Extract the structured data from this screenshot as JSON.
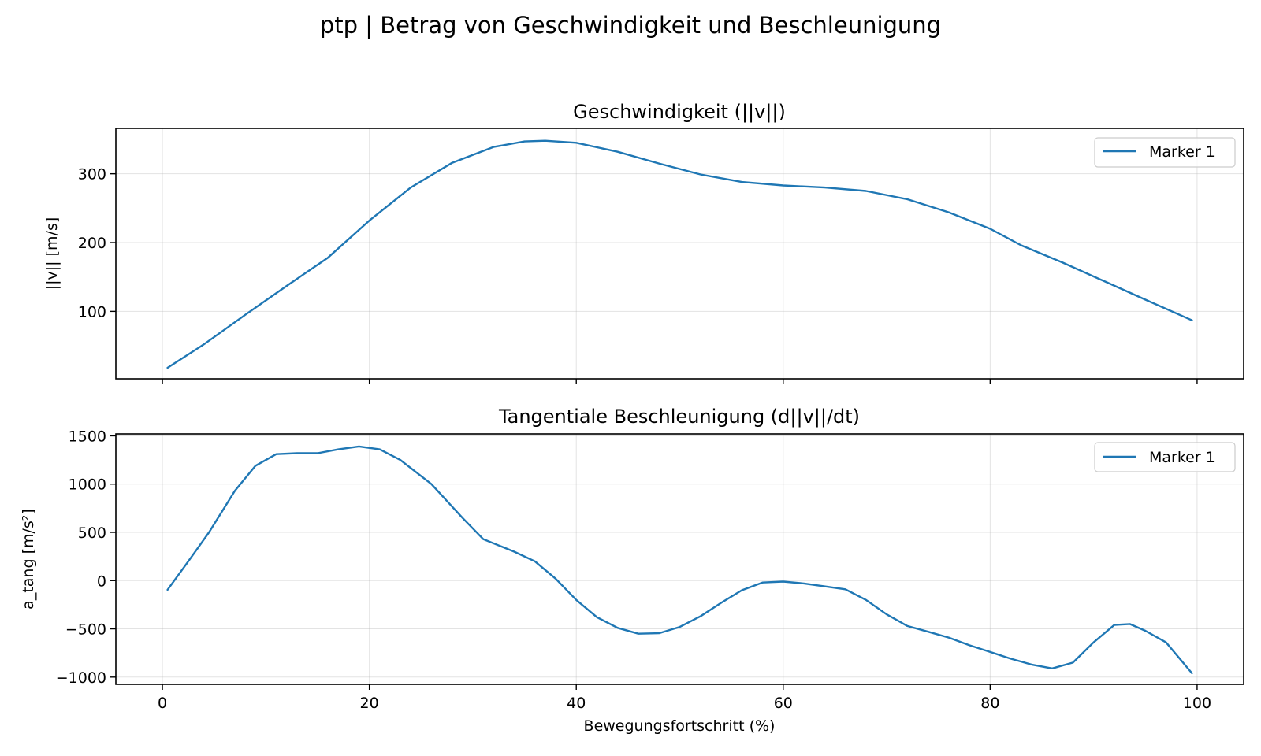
{
  "figure": {
    "suptitle": "ptp | Betrag von Geschwindigkeit und Beschleunigung",
    "xlabel": "Bewegungsfortschritt (%)",
    "line_color": "#1f77b4"
  },
  "chart_data": [
    {
      "type": "line",
      "title": "Geschwindigkeit (||v||)",
      "xlabel": "",
      "ylabel": "||v|| [m/s]",
      "xlim": [
        -4.5,
        104.5
      ],
      "ylim": [
        2,
        366
      ],
      "xticks": [
        0,
        20,
        40,
        60,
        80,
        100
      ],
      "yticks": [
        100,
        200,
        300
      ],
      "xtick_labels_visible": false,
      "grid": true,
      "legend": {
        "location": "top-right",
        "entries": [
          "Marker 1"
        ]
      },
      "series": [
        {
          "name": "Marker 1",
          "color": "#1f77b4",
          "x": [
            0.5,
            4,
            8,
            12,
            16,
            20,
            24,
            28,
            32,
            35,
            37,
            40,
            44,
            48,
            52,
            56,
            60,
            64,
            68,
            72,
            76,
            80,
            83,
            87,
            91,
            95,
            99.5
          ],
          "y": [
            18,
            52,
            95,
            137,
            178,
            232,
            280,
            316,
            339,
            347,
            348,
            345,
            332,
            315,
            299,
            288,
            283,
            280,
            275,
            263,
            244,
            220,
            196,
            171,
            144,
            117,
            87
          ]
        }
      ]
    },
    {
      "type": "line",
      "title": "Tangentiale Beschleunigung (d||v||/dt)",
      "xlabel": "Bewegungsfortschritt (%)",
      "ylabel": "a_tang [m/s²]",
      "xlim": [
        -4.5,
        104.5
      ],
      "ylim": [
        -1075,
        1520
      ],
      "xticks": [
        0,
        20,
        40,
        60,
        80,
        100
      ],
      "xtick_labels": [
        "0",
        "20",
        "40",
        "60",
        "80",
        "100"
      ],
      "yticks": [
        -1000,
        -500,
        0,
        500,
        1000,
        1500
      ],
      "ytick_labels": [
        "−1000",
        "−500",
        "0",
        "500",
        "1000",
        "1500"
      ],
      "grid": true,
      "legend": {
        "location": "top-right",
        "entries": [
          "Marker 1"
        ]
      },
      "series": [
        {
          "name": "Marker 1",
          "color": "#1f77b4",
          "x": [
            0.5,
            2.5,
            4.5,
            7,
            9,
            11,
            13,
            15,
            17,
            19,
            21,
            23,
            26,
            29,
            31,
            34,
            36,
            38,
            40,
            42,
            44,
            46,
            48,
            50,
            52,
            54,
            56,
            58,
            60,
            62,
            64,
            66,
            68,
            70,
            72,
            74,
            76,
            78,
            80,
            82,
            84,
            86,
            88,
            90,
            92,
            93.5,
            95,
            97,
            99.5
          ],
          "y": [
            -95,
            200,
            500,
            930,
            1190,
            1310,
            1320,
            1320,
            1360,
            1390,
            1360,
            1250,
            1000,
            650,
            430,
            300,
            200,
            20,
            -200,
            -380,
            -490,
            -550,
            -545,
            -480,
            -370,
            -230,
            -100,
            -20,
            -10,
            -30,
            -60,
            -90,
            -200,
            -350,
            -470,
            -530,
            -590,
            -670,
            -740,
            -810,
            -870,
            -910,
            -850,
            -640,
            -460,
            -450,
            -520,
            -640,
            -960
          ]
        }
      ]
    }
  ]
}
